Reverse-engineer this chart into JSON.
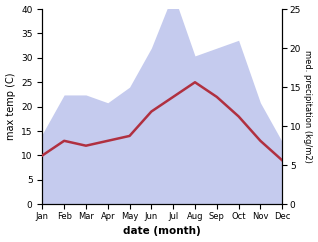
{
  "months": [
    "Jan",
    "Feb",
    "Mar",
    "Apr",
    "May",
    "Jun",
    "Jul",
    "Aug",
    "Sep",
    "Oct",
    "Nov",
    "Dec"
  ],
  "temp": [
    10,
    13,
    12,
    13,
    14,
    19,
    22,
    25,
    22,
    18,
    13,
    9
  ],
  "precip": [
    9,
    14,
    14,
    13,
    15,
    20,
    27,
    19,
    20,
    21,
    13,
    8
  ],
  "temp_color": "#b03040",
  "precip_fill_color": "#c5cbee",
  "temp_ylim": [
    0,
    40
  ],
  "precip_ylim": [
    0,
    25
  ],
  "xlabel": "date (month)",
  "ylabel_left": "max temp (C)",
  "ylabel_right": "med. precipitation (kg/m2)",
  "bg_color": "#ffffff"
}
